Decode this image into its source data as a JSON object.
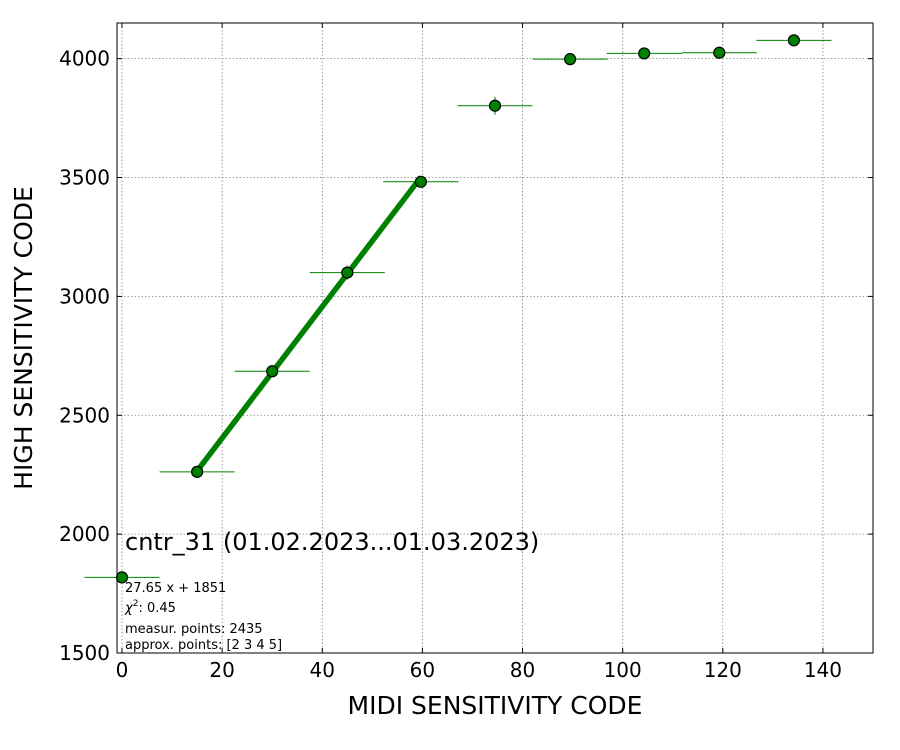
{
  "chart_data": {
    "type": "scatter",
    "title": "",
    "xlabel": "MIDI SENSITIVITY CODE",
    "ylabel": "HIGH SENSITIVITY CODE",
    "xlim": [
      -1,
      150
    ],
    "ylim": [
      1500,
      4150
    ],
    "xticks": [
      0,
      20,
      40,
      60,
      80,
      100,
      120,
      140
    ],
    "yticks": [
      1500,
      2000,
      2500,
      3000,
      3500,
      4000
    ],
    "grid": true,
    "colors": {
      "marker": "#008000",
      "marker_edge": "#000000",
      "fit_line": "#008000",
      "grid": "#808080"
    },
    "series": [
      {
        "points": [
          {
            "x": 0,
            "y": 1818,
            "xerr": 7.5,
            "yerr": 5
          },
          {
            "x": 15,
            "y": 2262,
            "xerr": 7.5,
            "yerr": 10
          },
          {
            "x": 30,
            "y": 2685,
            "xerr": 7.5,
            "yerr": 12
          },
          {
            "x": 45,
            "y": 3100,
            "xerr": 7.5,
            "yerr": 30
          },
          {
            "x": 59.7,
            "y": 3482,
            "xerr": 7.5,
            "yerr": 20
          },
          {
            "x": 74.5,
            "y": 3802,
            "xerr": 7.5,
            "yerr": 38
          },
          {
            "x": 89.5,
            "y": 3998,
            "xerr": 7.5,
            "yerr": 8
          },
          {
            "x": 104.3,
            "y": 4022,
            "xerr": 7.5,
            "yerr": 8
          },
          {
            "x": 119.3,
            "y": 4025,
            "xerr": 7.5,
            "yerr": 8
          },
          {
            "x": 134.2,
            "y": 4077,
            "xerr": 7.5,
            "yerr": 8
          }
        ]
      }
    ],
    "fit": {
      "slope": 27.65,
      "intercept": 1851,
      "x_range": [
        15,
        59.7
      ]
    },
    "annotations": {
      "title": "cntr_31 (01.02.2023...01.03.2023)",
      "equation": "27.65 x + 1851",
      "chi2_label": "χ",
      "chi2_exp": "2",
      "chi2_value": ": 0.45",
      "measur": "measur. points: 2435",
      "approx": "approx. points: [2 3 4 5]"
    }
  }
}
